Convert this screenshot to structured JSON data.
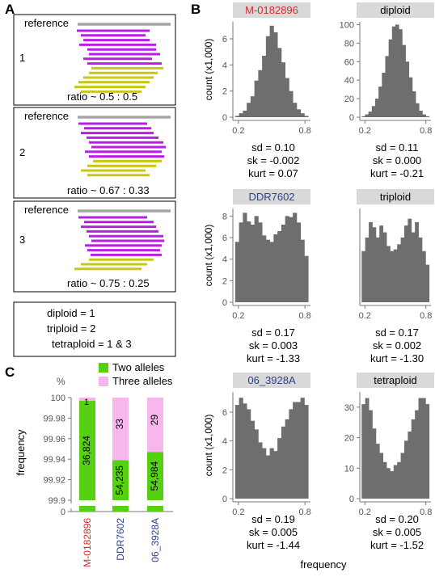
{
  "panel_letters": [
    "A",
    "B",
    "C"
  ],
  "panelA": {
    "boxes": [
      {
        "number": "1",
        "ref": "reference",
        "ratio": "ratio ~ 0.5 : 0.5",
        "reads": [
          [
            95,
            185,
            "p"
          ],
          [
            100,
            180,
            "p"
          ],
          [
            103,
            185,
            "p"
          ],
          [
            98,
            193,
            "p"
          ],
          [
            108,
            193,
            "p"
          ],
          [
            110,
            198,
            "p"
          ],
          [
            103,
            188,
            "p"
          ],
          [
            108,
            200,
            "p"
          ],
          [
            113,
            202,
            "y"
          ],
          [
            110,
            195,
            "y"
          ],
          [
            103,
            190,
            "y"
          ],
          [
            97,
            185,
            "y"
          ],
          [
            92,
            180,
            "y"
          ],
          [
            100,
            175,
            "y"
          ]
        ]
      },
      {
        "number": "2",
        "ref": "reference",
        "ratio": "ratio ~ 0.67 : 0.33",
        "reads": [
          [
            97,
            182,
            "p"
          ],
          [
            104,
            187,
            "p"
          ],
          [
            100,
            190,
            "p"
          ],
          [
            107,
            196,
            "p"
          ],
          [
            110,
            202,
            "p"
          ],
          [
            113,
            205,
            "p"
          ],
          [
            105,
            200,
            "p"
          ],
          [
            110,
            203,
            "p"
          ],
          [
            115,
            200,
            "y"
          ],
          [
            108,
            193,
            "y"
          ],
          [
            100,
            180,
            "y"
          ],
          [
            108,
            185,
            "y"
          ]
        ]
      },
      {
        "number": "3",
        "ref": "reference",
        "ratio": "ratio ~ 0.75 : 0.25",
        "reads": [
          [
            97,
            182,
            "p"
          ],
          [
            104,
            190,
            "p"
          ],
          [
            100,
            193,
            "p"
          ],
          [
            107,
            196,
            "p"
          ],
          [
            110,
            202,
            "p"
          ],
          [
            113,
            203,
            "p"
          ],
          [
            105,
            200,
            "p"
          ],
          [
            108,
            198,
            "p"
          ],
          [
            112,
            200,
            "p"
          ],
          [
            110,
            190,
            "y"
          ],
          [
            100,
            182,
            "y"
          ],
          [
            92,
            175,
            "y"
          ]
        ]
      }
    ],
    "legend": [
      "diploid = 1",
      "triploid = 2",
      "tetraploid = 1 & 3"
    ],
    "colors": {
      "purple": "#b91ee6",
      "yellow": "#c8c814",
      "gray": "#a6a6a6"
    }
  },
  "chart_data": [
    {
      "type": "bar",
      "title": "M-0182896",
      "title_color": "#d62a2a",
      "ylabel": "count (x1,000)",
      "xlim": [
        0.15,
        0.85
      ],
      "xticks": [
        "0.2",
        "0.8"
      ],
      "xtick_values": [
        0.2,
        0.8
      ],
      "ylim": [
        0,
        7.3
      ],
      "yticks": [
        0,
        2,
        4,
        6
      ],
      "values": [
        0.1,
        0.3,
        0.5,
        1.1,
        1.6,
        2.8,
        3.6,
        4.7,
        6.2,
        7.0,
        6.5,
        5.3,
        4.2,
        3.0,
        2.0,
        1.1,
        0.6,
        0.3,
        0.1
      ],
      "stats": [
        "sd = 0.10",
        "sk = -0.002",
        "kurt = 0.07"
      ]
    },
    {
      "type": "bar",
      "title": "diploid",
      "title_color": "#000000",
      "ylabel": "",
      "xlim": [
        0.15,
        0.85
      ],
      "xticks": [
        "0.2",
        "0.8"
      ],
      "xtick_values": [
        0.2,
        0.8
      ],
      "ylim": [
        0,
        103
      ],
      "yticks": [
        0,
        20,
        40,
        60,
        80,
        100
      ],
      "values": [
        1,
        3,
        6,
        12,
        20,
        33,
        48,
        66,
        84,
        98,
        100,
        95,
        78,
        60,
        43,
        28,
        15,
        7,
        3,
        1
      ],
      "stats": [
        "sd = 0.11",
        "sk = 0.000",
        "kurt = -0.21"
      ]
    },
    {
      "type": "bar",
      "title": "DDR7602",
      "title_color": "#2b3f8f",
      "ylabel": "count (x1,000)",
      "xlim": [
        0.15,
        0.85
      ],
      "xticks": [
        "0.2",
        "0.8"
      ],
      "xtick_values": [
        0.2,
        0.8
      ],
      "ylim": [
        0,
        8.7
      ],
      "yticks": [
        0,
        2,
        4,
        6,
        8
      ],
      "values": [
        5.6,
        7.4,
        8.3,
        7.5,
        7.2,
        8.0,
        7.4,
        6.2,
        5.8,
        5.6,
        6.3,
        6.6,
        7.2,
        8.0,
        7.9,
        8.3,
        7.4,
        5.8,
        4.3
      ],
      "stats": [
        "sd = 0.17",
        "sk = 0.003",
        "kurt = -1.33"
      ]
    },
    {
      "type": "bar",
      "title": "triploid",
      "title_color": "#000000",
      "ylabel": "",
      "xlim": [
        0.15,
        0.85
      ],
      "xticks": [
        "0.2",
        "0.8"
      ],
      "xtick_values": [
        0.2,
        0.8
      ],
      "ylim": [
        0,
        55
      ],
      "yticks": [],
      "values": [
        30,
        38,
        47,
        44,
        38,
        45,
        41,
        33,
        30,
        31,
        34,
        38,
        45,
        49,
        41,
        47,
        38,
        30,
        22
      ],
      "stats": [
        "sd = 0.17",
        "sk = 0.002",
        "kurt = -1.30"
      ]
    },
    {
      "type": "bar",
      "title": "06_3928A",
      "title_color": "#2b3f8f",
      "ylabel": "count (x1,000)",
      "xlim": [
        0.15,
        0.85
      ],
      "xticks": [
        "0.2",
        "0.8"
      ],
      "xtick_values": [
        0.2,
        0.8
      ],
      "ylim": [
        0,
        7.4
      ],
      "yticks": [
        0,
        2,
        4,
        6
      ],
      "values": [
        6.5,
        7.0,
        6.6,
        6.2,
        5.4,
        4.8,
        3.9,
        3.5,
        3.0,
        3.5,
        3.3,
        4.2,
        5.0,
        5.5,
        6.2,
        6.7,
        6.7,
        7.0,
        6.5
      ],
      "stats": [
        "sd = 0.19",
        "sk = 0.005",
        "kurt = -1.44"
      ]
    },
    {
      "type": "bar",
      "title": "tetraploid",
      "title_color": "#000000",
      "ylabel": "",
      "xlim": [
        0.15,
        0.85
      ],
      "xticks": [
        "0.2",
        "0.8"
      ],
      "xtick_values": [
        0.2,
        0.8
      ],
      "ylim": [
        0,
        35
      ],
      "yticks": [
        0,
        10,
        20,
        30
      ],
      "values": [
        31,
        33,
        29,
        23,
        18,
        15,
        12,
        10,
        9,
        11,
        12,
        15,
        19,
        22,
        26,
        29,
        33,
        33,
        31
      ],
      "stats": [
        "sd = 0.20",
        "sk = 0.005",
        "kurt = -1.52"
      ]
    },
    {
      "type": "bar",
      "title": "",
      "ylabel": "frequency",
      "yunit": "%",
      "ylim": [
        99.9,
        100
      ],
      "yticks": [
        "99.9",
        "99.92",
        "99.94",
        "99.96",
        "99.98",
        "100"
      ],
      "ybreak_label": "0",
      "categories": [
        "M-0182896",
        "DDR7602",
        "06_3928A"
      ],
      "category_colors": [
        "#d62a2a",
        "#2b3f8f",
        "#2b3f8f"
      ],
      "series": [
        {
          "name": "Two alleles",
          "color": "#55d012",
          "values": [
            99.997,
            99.939,
            99.947
          ],
          "labels": [
            "36,824",
            "54,235",
            "54,984"
          ]
        },
        {
          "name": "Three alleles",
          "color": "#f7b7ec",
          "values": [
            0.003,
            0.061,
            0.053
          ],
          "labels": [
            "1",
            "33",
            "29"
          ]
        }
      ]
    }
  ],
  "hist_xlabel": "frequency"
}
